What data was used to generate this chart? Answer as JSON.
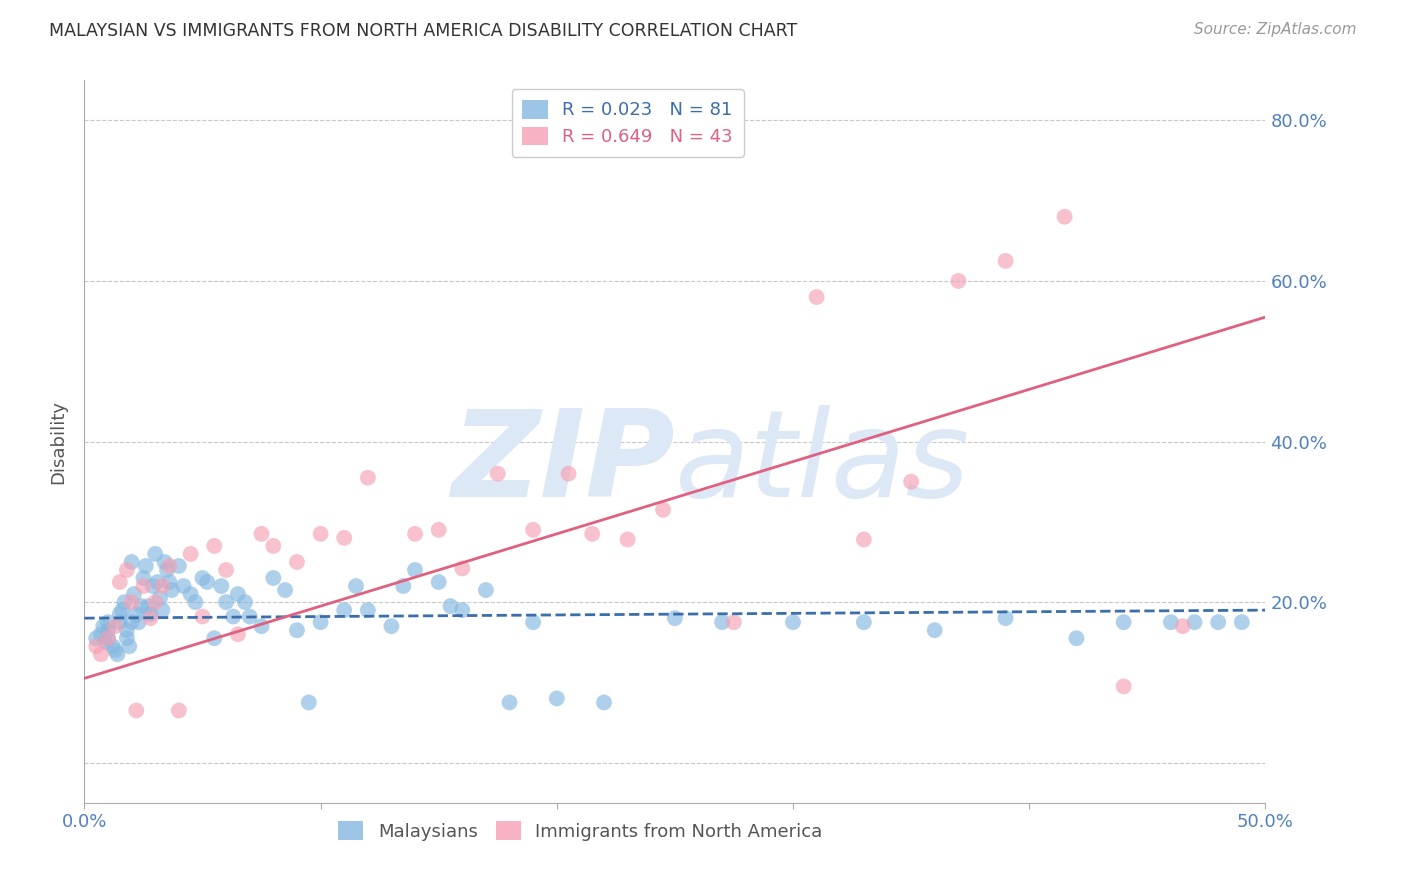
{
  "title": "MALAYSIAN VS IMMIGRANTS FROM NORTH AMERICA DISABILITY CORRELATION CHART",
  "source": "Source: ZipAtlas.com",
  "ylabel": "Disability",
  "xlim": [
    0.0,
    0.5
  ],
  "ylim": [
    -0.05,
    0.85
  ],
  "y_ticks": [
    0.0,
    0.2,
    0.4,
    0.6,
    0.8
  ],
  "y_tick_labels": [
    "",
    "20.0%",
    "40.0%",
    "60.0%",
    "80.0%"
  ],
  "x_ticks": [
    0.0,
    0.1,
    0.2,
    0.3,
    0.4,
    0.5
  ],
  "x_tick_labels": [
    "0.0%",
    "",
    "",
    "",
    "",
    "50.0%"
  ],
  "legend_r_labels": [
    "R = 0.023   N = 81",
    "R = 0.649   N = 43"
  ],
  "legend_labels": [
    "Malaysians",
    "Immigrants from North America"
  ],
  "blue_color": "#85b8e0",
  "pink_color": "#f5a0b5",
  "trendline_blue_color": "#3b6eaa",
  "trendline_pink_color": "#e06080",
  "watermark_color": "#dce8f5",
  "background_color": "#ffffff",
  "grid_color": "#c8c8c8",
  "tick_color": "#5080c0",
  "title_color": "#333333",
  "source_color": "#999999",
  "axis_label_color": "#555555",
  "blue_scatter_x": [
    0.005,
    0.007,
    0.008,
    0.009,
    0.01,
    0.01,
    0.01,
    0.012,
    0.013,
    0.014,
    0.015,
    0.015,
    0.016,
    0.017,
    0.018,
    0.018,
    0.019,
    0.02,
    0.02,
    0.021,
    0.022,
    0.023,
    0.024,
    0.025,
    0.026,
    0.027,
    0.028,
    0.029,
    0.03,
    0.031,
    0.032,
    0.033,
    0.034,
    0.035,
    0.036,
    0.037,
    0.04,
    0.042,
    0.045,
    0.047,
    0.05,
    0.052,
    0.055,
    0.058,
    0.06,
    0.063,
    0.065,
    0.068,
    0.07,
    0.075,
    0.08,
    0.085,
    0.09,
    0.095,
    0.1,
    0.11,
    0.115,
    0.12,
    0.13,
    0.135,
    0.14,
    0.15,
    0.155,
    0.16,
    0.17,
    0.18,
    0.19,
    0.2,
    0.22,
    0.25,
    0.27,
    0.3,
    0.33,
    0.36,
    0.39,
    0.42,
    0.44,
    0.46,
    0.47,
    0.48,
    0.49
  ],
  "blue_scatter_y": [
    0.155,
    0.16,
    0.17,
    0.15,
    0.165,
    0.155,
    0.175,
    0.145,
    0.14,
    0.135,
    0.175,
    0.185,
    0.19,
    0.2,
    0.165,
    0.155,
    0.145,
    0.25,
    0.175,
    0.21,
    0.185,
    0.175,
    0.195,
    0.23,
    0.245,
    0.195,
    0.185,
    0.22,
    0.26,
    0.225,
    0.205,
    0.19,
    0.25,
    0.24,
    0.225,
    0.215,
    0.245,
    0.22,
    0.21,
    0.2,
    0.23,
    0.225,
    0.155,
    0.22,
    0.2,
    0.182,
    0.21,
    0.2,
    0.182,
    0.17,
    0.23,
    0.215,
    0.165,
    0.075,
    0.175,
    0.19,
    0.22,
    0.19,
    0.17,
    0.22,
    0.24,
    0.225,
    0.195,
    0.19,
    0.215,
    0.075,
    0.175,
    0.08,
    0.075,
    0.18,
    0.175,
    0.175,
    0.175,
    0.165,
    0.18,
    0.155,
    0.175,
    0.175,
    0.175,
    0.175,
    0.175
  ],
  "pink_scatter_x": [
    0.005,
    0.007,
    0.01,
    0.013,
    0.015,
    0.018,
    0.02,
    0.022,
    0.025,
    0.028,
    0.03,
    0.033,
    0.036,
    0.04,
    0.045,
    0.05,
    0.055,
    0.06,
    0.065,
    0.075,
    0.08,
    0.09,
    0.1,
    0.11,
    0.12,
    0.14,
    0.15,
    0.16,
    0.175,
    0.19,
    0.205,
    0.215,
    0.23,
    0.245,
    0.275,
    0.31,
    0.33,
    0.35,
    0.37,
    0.39,
    0.415,
    0.44,
    0.465
  ],
  "pink_scatter_y": [
    0.145,
    0.135,
    0.155,
    0.17,
    0.225,
    0.24,
    0.2,
    0.065,
    0.22,
    0.18,
    0.2,
    0.22,
    0.245,
    0.065,
    0.26,
    0.182,
    0.27,
    0.24,
    0.16,
    0.285,
    0.27,
    0.25,
    0.285,
    0.28,
    0.355,
    0.285,
    0.29,
    0.242,
    0.36,
    0.29,
    0.36,
    0.285,
    0.278,
    0.315,
    0.175,
    0.58,
    0.278,
    0.35,
    0.6,
    0.625,
    0.68,
    0.095,
    0.17
  ],
  "blue_trendline_x": [
    0.0,
    0.5
  ],
  "blue_trendline_y": [
    0.18,
    0.19
  ],
  "pink_trendline_x": [
    0.0,
    0.5
  ],
  "pink_trendline_y": [
    0.105,
    0.555
  ]
}
